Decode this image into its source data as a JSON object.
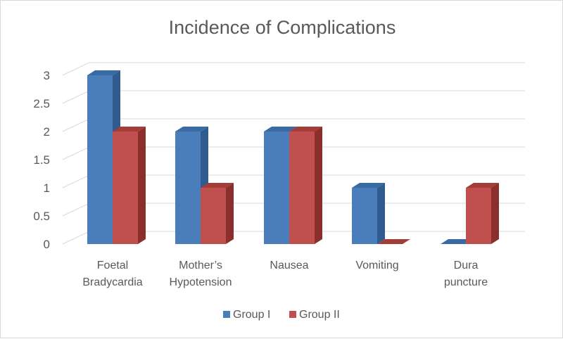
{
  "chart_data": {
    "type": "bar",
    "title": "Incidence of Complications",
    "categories": [
      [
        "Foetal",
        "Bradycardia"
      ],
      [
        "Mother’s",
        "Hypotension"
      ],
      [
        "Nausea"
      ],
      [
        "Vomiting"
      ],
      [
        "Dura",
        "puncture"
      ]
    ],
    "series": [
      {
        "name": "Group I",
        "values": [
          3,
          2,
          2,
          1,
          0
        ],
        "color": "#4a7ebb",
        "side_color": "#2f5b8e",
        "top_color": "#3a6aa3"
      },
      {
        "name": "Group II",
        "values": [
          2,
          1,
          2,
          0,
          1
        ],
        "color": "#c0504d",
        "side_color": "#8b2f2c",
        "top_color": "#a33d3a"
      }
    ],
    "yticks": [
      "0",
      "0.5",
      "1",
      "1.5",
      "2",
      "2.5",
      "3"
    ],
    "ylim": [
      0,
      3
    ],
    "grid": true,
    "legend": "bottom"
  }
}
